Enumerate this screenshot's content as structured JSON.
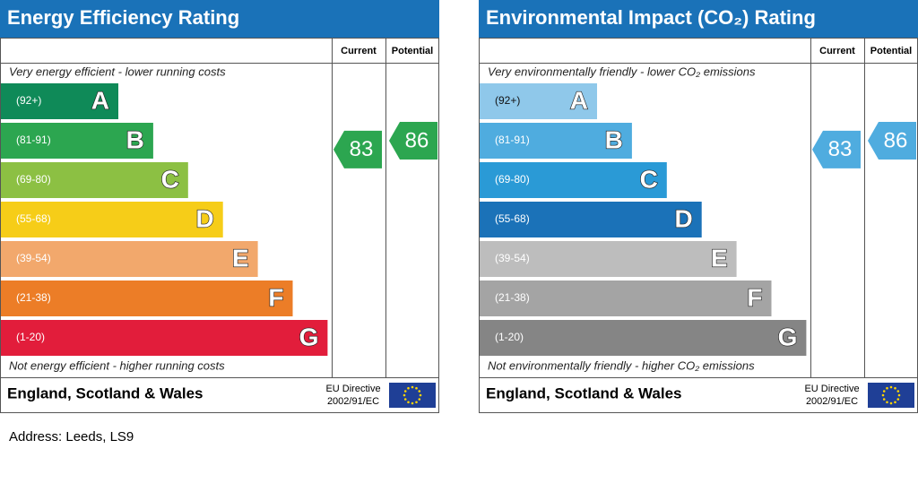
{
  "panels": [
    {
      "title": "Energy Efficiency Rating",
      "columns": [
        "Current",
        "Potential"
      ],
      "top_text": "Very energy efficient - lower running costs",
      "bottom_text": "Not energy efficient - higher running costs",
      "bands": [
        {
          "range": "(92+)",
          "letter": "A",
          "color": "#0f8a58",
          "label_color": "#ffffff"
        },
        {
          "range": "(81-91)",
          "letter": "B",
          "color": "#2ca650",
          "label_color": "#ffffff"
        },
        {
          "range": "(69-80)",
          "letter": "C",
          "color": "#8cc043",
          "label_color": "#ffffff"
        },
        {
          "range": "(55-68)",
          "letter": "D",
          "color": "#f6cd18",
          "label_color": "#ffffff"
        },
        {
          "range": "(39-54)",
          "letter": "E",
          "color": "#f2a86c",
          "label_color": "#ffffff"
        },
        {
          "range": "(21-38)",
          "letter": "F",
          "color": "#ec7d27",
          "label_color": "#ffffff"
        },
        {
          "range": "(1-20)",
          "letter": "G",
          "color": "#e21d3b",
          "label_color": "#ffffff"
        }
      ],
      "current": {
        "value": 83,
        "color": "#2ca650"
      },
      "potential": {
        "value": 86,
        "color": "#2ca650"
      },
      "region": "England, Scotland & Wales",
      "directive": [
        "EU Directive",
        "2002/91/EC"
      ]
    },
    {
      "title": "Environmental Impact (CO₂) Rating",
      "columns": [
        "Current",
        "Potential"
      ],
      "top_text": "Very environmentally friendly - lower CO₂ emissions",
      "bottom_text": "Not environmentally friendly - higher CO₂ emissions",
      "bands": [
        {
          "range": "(92+)",
          "letter": "A",
          "color": "#8fc8ea",
          "label_color": "#111111"
        },
        {
          "range": "(81-91)",
          "letter": "B",
          "color": "#4facdf",
          "label_color": "#ffffff"
        },
        {
          "range": "(69-80)",
          "letter": "C",
          "color": "#2a9ad6",
          "label_color": "#ffffff"
        },
        {
          "range": "(55-68)",
          "letter": "D",
          "color": "#1b72b8",
          "label_color": "#ffffff"
        },
        {
          "range": "(39-54)",
          "letter": "E",
          "color": "#bdbdbd",
          "label_color": "#ffffff"
        },
        {
          "range": "(21-38)",
          "letter": "F",
          "color": "#a4a4a4",
          "label_color": "#ffffff"
        },
        {
          "range": "(1-20)",
          "letter": "G",
          "color": "#858585",
          "label_color": "#ffffff"
        }
      ],
      "current": {
        "value": 83,
        "color": "#4facdf"
      },
      "potential": {
        "value": 86,
        "color": "#4facdf"
      },
      "region": "England, Scotland & Wales",
      "directive": [
        "EU Directive",
        "2002/91/EC"
      ]
    }
  ],
  "address": "Address: Leeds, LS9"
}
